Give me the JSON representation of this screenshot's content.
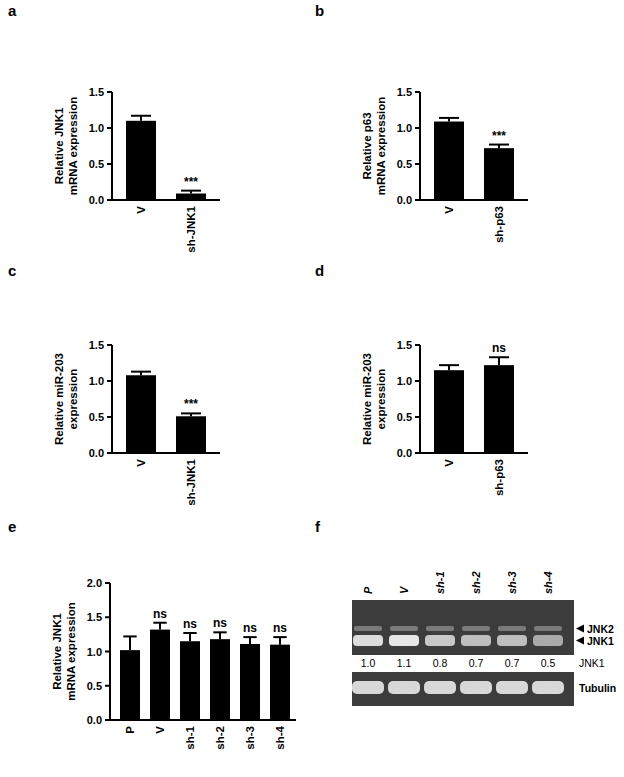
{
  "chart_data": [
    {
      "type": "bar",
      "title": "a",
      "y_label": [
        "Relative JNK1",
        "mRNA expression"
      ],
      "categories": [
        "V",
        "sh-JNK1"
      ],
      "values": [
        1.1,
        0.09
      ],
      "errors": [
        0.07,
        0.04
      ],
      "annotations": [
        null,
        "***"
      ],
      "color": "#000000",
      "ylim": [
        0,
        1.5
      ],
      "yticks": [
        {
          "value": 0,
          "label": "0.0"
        },
        {
          "value": 0.5,
          "label": "0.5"
        },
        {
          "value": 1,
          "label": "1.0"
        },
        {
          "value": 1.5,
          "label": "1.5"
        }
      ],
      "grid": false
    },
    {
      "type": "bar",
      "title": "b",
      "y_label": [
        "Relative p63",
        "mRNA expression"
      ],
      "categories": [
        "V",
        "sh-p63"
      ],
      "values": [
        1.09,
        0.72
      ],
      "errors": [
        0.05,
        0.05
      ],
      "annotations": [
        null,
        "***"
      ],
      "color": "#000000",
      "ylim": [
        0,
        1.5
      ],
      "yticks": [
        {
          "value": 0,
          "label": "0.0"
        },
        {
          "value": 0.5,
          "label": "0.5"
        },
        {
          "value": 1,
          "label": "1.0"
        },
        {
          "value": 1.5,
          "label": "1.5"
        }
      ],
      "grid": false
    },
    {
      "type": "bar",
      "title": "c",
      "y_label": [
        "Relative miR-203",
        "expression"
      ],
      "categories": [
        "V",
        "sh-JNK1"
      ],
      "values": [
        1.08,
        0.51
      ],
      "errors": [
        0.05,
        0.04
      ],
      "annotations": [
        null,
        "***"
      ],
      "color": "#000000",
      "ylim": [
        0,
        1.5
      ],
      "yticks": [
        {
          "value": 0,
          "label": "0.0"
        },
        {
          "value": 0.5,
          "label": "0.5"
        },
        {
          "value": 1,
          "label": "1.0"
        },
        {
          "value": 1.5,
          "label": "1.5"
        }
      ],
      "grid": false
    },
    {
      "type": "bar",
      "title": "d",
      "y_label": [
        "Relative miR-203",
        "expression"
      ],
      "categories": [
        "V",
        "sh-p63"
      ],
      "values": [
        1.15,
        1.22
      ],
      "errors": [
        0.07,
        0.11
      ],
      "annotations": [
        null,
        "ns"
      ],
      "color": "#000000",
      "ylim": [
        0,
        1.5
      ],
      "yticks": [
        {
          "value": 0,
          "label": "0.0"
        },
        {
          "value": 0.5,
          "label": "0.5"
        },
        {
          "value": 1,
          "label": "1.0"
        },
        {
          "value": 1.5,
          "label": "1.5"
        }
      ],
      "grid": false
    },
    {
      "type": "bar",
      "title": "e",
      "y_label": [
        "Relative JNK1",
        "mRNA expression"
      ],
      "categories": [
        "P",
        "V",
        "sh-1",
        "sh-2",
        "sh-3",
        "sh-4"
      ],
      "values": [
        1.02,
        1.32,
        1.15,
        1.18,
        1.11,
        1.1
      ],
      "errors": [
        0.2,
        0.1,
        0.12,
        0.1,
        0.1,
        0.11
      ],
      "annotations": [
        null,
        "ns",
        "ns",
        "ns",
        "ns",
        "ns"
      ],
      "color": "#000000",
      "ylim": [
        0,
        2
      ],
      "yticks": [
        {
          "value": 0,
          "label": "0.0"
        },
        {
          "value": 0.5,
          "label": "0.5"
        },
        {
          "value": 1,
          "label": "1.0"
        },
        {
          "value": 1.5,
          "label": "1.5"
        },
        {
          "value": 2,
          "label": "2.0"
        }
      ],
      "grid": false
    },
    {
      "type": "blot",
      "title": "f",
      "categories": [
        "P",
        "V",
        "sh-1",
        "sh-2",
        "sh-3",
        "sh-4"
      ],
      "values": [
        1.0,
        1.1,
        0.8,
        0.7,
        0.7,
        0.5
      ],
      "value_labels": [
        "1.0",
        "1.1",
        "0.8",
        "0.7",
        "0.7",
        "0.5"
      ],
      "value_name": "JNK1",
      "bands": [
        "JNK2",
        "JNK1"
      ],
      "loading_control": "Tubulin",
      "data_labels": true
    }
  ]
}
